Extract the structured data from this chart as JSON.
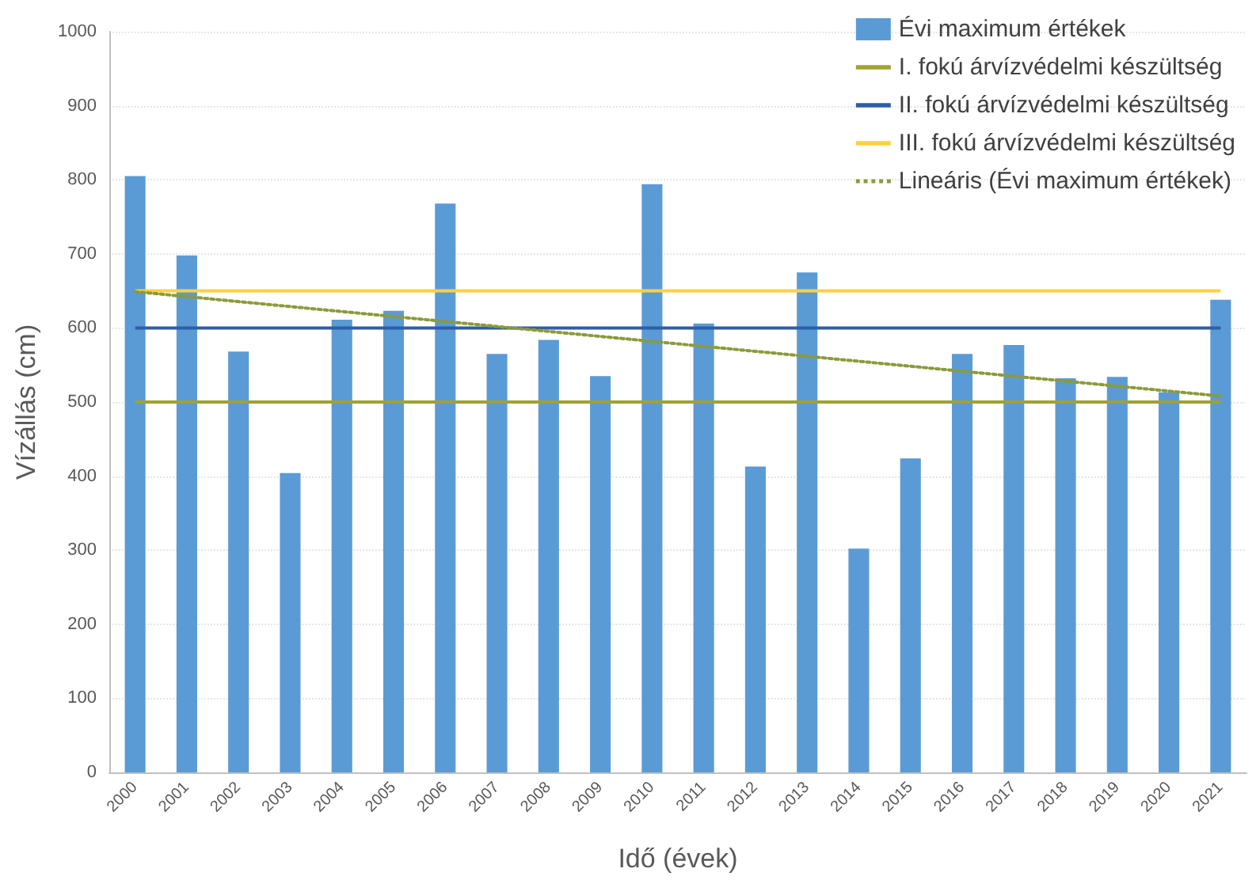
{
  "chart_data": {
    "type": "bar",
    "xlabel": "Idő (évek)",
    "ylabel": "Vízállás (cm)",
    "categories": [
      "2000",
      "2001",
      "2002",
      "2003",
      "2004",
      "2005",
      "2006",
      "2007",
      "2008",
      "2009",
      "2010",
      "2011",
      "2012",
      "2013",
      "2014",
      "2015",
      "2016",
      "2017",
      "2018",
      "2019",
      "2020",
      "2021"
    ],
    "series": [
      {
        "name": "Évi maximum értékek",
        "color": "#5b9bd5",
        "values": [
          805,
          698,
          568,
          404,
          611,
          623,
          768,
          565,
          584,
          535,
          794,
          606,
          413,
          675,
          302,
          424,
          565,
          577,
          532,
          534,
          513,
          638
        ]
      },
      {
        "name": "Lineáris (Évi maximum értékek)",
        "type": "line",
        "color": "#8c9a3a",
        "line_style": "dotted",
        "marker": "none",
        "values": [
          649,
          null,
          null,
          null,
          null,
          null,
          null,
          null,
          null,
          null,
          null,
          null,
          null,
          null,
          null,
          null,
          null,
          null,
          null,
          null,
          null,
          508
        ]
      }
    ],
    "ref_lines": [
      {
        "axis": "y",
        "value": 500,
        "label": "I. fokú árvízvédelmi készültség",
        "color": "#9ea332"
      },
      {
        "axis": "y",
        "value": 600,
        "label": "II. fokú árvízvédelmi készültség",
        "color": "#2f5ea8"
      },
      {
        "axis": "y",
        "value": 650,
        "label": "III. fokú árvízvédelmi készültség",
        "color": "#fdd13f"
      }
    ],
    "ylim": [
      0,
      1000
    ],
    "yticks": [
      0,
      100,
      200,
      300,
      400,
      500,
      600,
      700,
      800,
      900,
      1000
    ],
    "grid": "y",
    "legend": "top right"
  }
}
